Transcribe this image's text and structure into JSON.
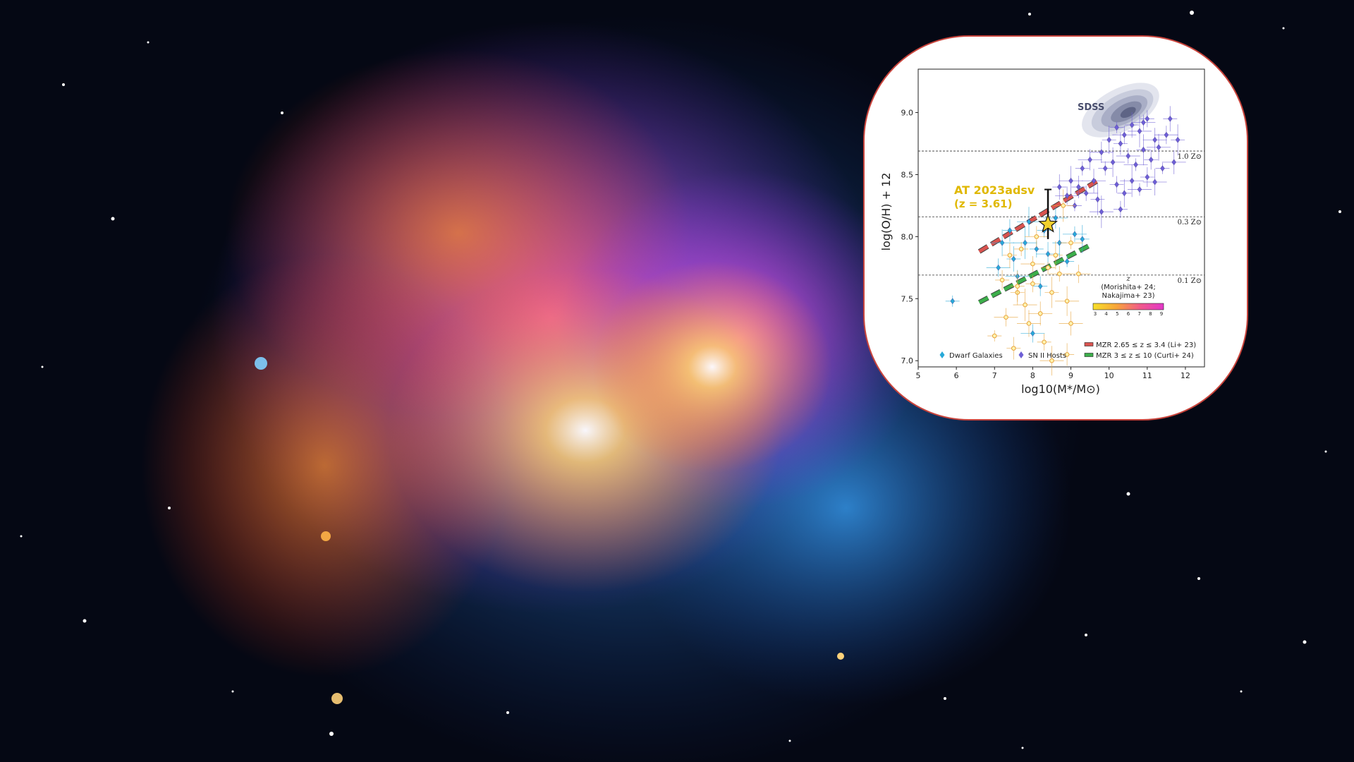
{
  "chart_data": {
    "type": "scatter",
    "xlabel": "log10(M*/M⊙)",
    "ylabel": "log(O/H) + 12",
    "xlim": [
      5,
      12.5
    ],
    "ylim": [
      6.95,
      9.35
    ],
    "xticks": [
      "5",
      "6",
      "7",
      "8",
      "9",
      "10",
      "11",
      "12"
    ],
    "yticks": [
      "7.0",
      "7.5",
      "8.0",
      "8.5",
      "9.0"
    ],
    "grid": false,
    "reference_lines": [
      {
        "y": 8.69,
        "label": "1.0 Z⊙"
      },
      {
        "y": 8.16,
        "label": "0.3 Z⊙"
      },
      {
        "y": 7.69,
        "label": "0.1 Z⊙"
      }
    ],
    "highlight": {
      "name": "AT 2023adsv",
      "label_line1": "AT 2023adsv",
      "label_line2": "(z = 3.61)",
      "x": 8.4,
      "y": 8.1,
      "yerr_low": 0.12,
      "yerr_high": 0.28,
      "color": "#f2d02c"
    },
    "sdss_label": "SDSS",
    "sdss_contour_center": [
      10.3,
      9.02
    ],
    "fits": [
      {
        "name": "MZR 2.65 ≤ z ≤ 3.4 (Li+ 23)",
        "color": "#d9534f",
        "x": [
          6.6,
          9.7
        ],
        "y": [
          7.88,
          8.45
        ]
      },
      {
        "name": "MZR 3 ≤ z ≤ 10 (Curti+ 24)",
        "color": "#3cae4a",
        "x": [
          6.6,
          9.5
        ],
        "y": [
          7.47,
          7.93
        ]
      }
    ],
    "legend": {
      "markers": [
        "Dwarf Galaxies",
        "SN II Hosts"
      ],
      "lines": [
        "MZR 2.65 ≤ z ≤ 3.4 (Li+ 23)",
        "MZR 3 ≤ z ≤ 10 (Curti+ 24)"
      ],
      "placement": "bottom"
    },
    "colorbar": {
      "title": "z",
      "subtitle_line1": "(Morishita+ 24;",
      "subtitle_line2": "Nakajima+ 23)",
      "ticks": [
        "3",
        "4",
        "5",
        "6",
        "7",
        "8",
        "9"
      ],
      "colors": [
        "#f7e02a",
        "#f7a43a",
        "#f05a8a",
        "#e236c8"
      ]
    },
    "series": [
      {
        "name": "SN II Hosts",
        "color": "#6e5fd6",
        "points": [
          [
            10.2,
            8.88
          ],
          [
            10.4,
            8.82
          ],
          [
            10.6,
            8.9
          ],
          [
            10.8,
            8.85
          ],
          [
            11.0,
            8.95
          ],
          [
            11.2,
            8.78
          ],
          [
            10.9,
            8.7
          ],
          [
            10.5,
            8.65
          ],
          [
            10.3,
            8.75
          ],
          [
            10.1,
            8.6
          ],
          [
            9.9,
            8.55
          ],
          [
            9.8,
            8.68
          ],
          [
            10.0,
            8.78
          ],
          [
            10.7,
            8.58
          ],
          [
            11.1,
            8.62
          ],
          [
            11.3,
            8.72
          ],
          [
            11.4,
            8.55
          ],
          [
            11.5,
            8.82
          ],
          [
            11.6,
            8.95
          ],
          [
            10.6,
            8.45
          ],
          [
            10.2,
            8.42
          ],
          [
            9.6,
            8.45
          ],
          [
            9.7,
            8.3
          ],
          [
            9.4,
            8.35
          ],
          [
            9.2,
            8.4
          ],
          [
            9.0,
            8.45
          ],
          [
            9.3,
            8.55
          ],
          [
            9.5,
            8.62
          ],
          [
            10.4,
            8.35
          ],
          [
            10.8,
            8.38
          ],
          [
            11.0,
            8.48
          ],
          [
            11.2,
            8.44
          ],
          [
            9.1,
            8.25
          ],
          [
            8.9,
            8.33
          ],
          [
            8.7,
            8.4
          ],
          [
            9.8,
            8.2
          ],
          [
            10.3,
            8.22
          ],
          [
            11.7,
            8.6
          ],
          [
            11.8,
            8.78
          ],
          [
            10.9,
            8.92
          ]
        ]
      },
      {
        "name": "Dwarf Galaxies",
        "color": "#27a9d8",
        "points": [
          [
            5.9,
            7.48
          ],
          [
            7.1,
            7.75
          ],
          [
            7.5,
            7.82
          ],
          [
            7.8,
            7.95
          ],
          [
            8.1,
            7.9
          ],
          [
            8.4,
            7.86
          ],
          [
            8.7,
            7.95
          ],
          [
            9.1,
            8.02
          ],
          [
            7.4,
            8.05
          ],
          [
            7.9,
            8.12
          ],
          [
            8.3,
            8.05
          ],
          [
            8.6,
            8.15
          ],
          [
            9.3,
            7.98
          ],
          [
            7.6,
            7.68
          ],
          [
            8.2,
            7.6
          ],
          [
            7.2,
            7.95
          ],
          [
            8.9,
            7.8
          ],
          [
            8.0,
            7.22
          ]
        ]
      },
      {
        "name": "high-z (Morishita+ 24; Nakajima+ 23)",
        "color": "#e8a33a",
        "points": [
          [
            7.0,
            7.2
          ],
          [
            7.3,
            7.35
          ],
          [
            7.6,
            7.55
          ],
          [
            7.8,
            7.45
          ],
          [
            8.0,
            7.62
          ],
          [
            8.2,
            7.38
          ],
          [
            8.5,
            7.55
          ],
          [
            8.7,
            7.7
          ],
          [
            7.5,
            7.1
          ],
          [
            8.9,
            7.48
          ],
          [
            7.7,
            7.9
          ],
          [
            8.1,
            8.0
          ],
          [
            8.6,
            7.85
          ],
          [
            9.0,
            7.95
          ],
          [
            7.2,
            7.65
          ],
          [
            7.9,
            7.3
          ],
          [
            8.4,
            7.75
          ],
          [
            9.2,
            7.7
          ],
          [
            7.4,
            7.85
          ],
          [
            8.8,
            8.25
          ],
          [
            8.3,
            7.15
          ],
          [
            9.0,
            7.3
          ],
          [
            7.6,
            7.6
          ],
          [
            8.0,
            7.78
          ],
          [
            8.9,
            7.05
          ],
          [
            8.5,
            7.0
          ]
        ]
      }
    ]
  }
}
